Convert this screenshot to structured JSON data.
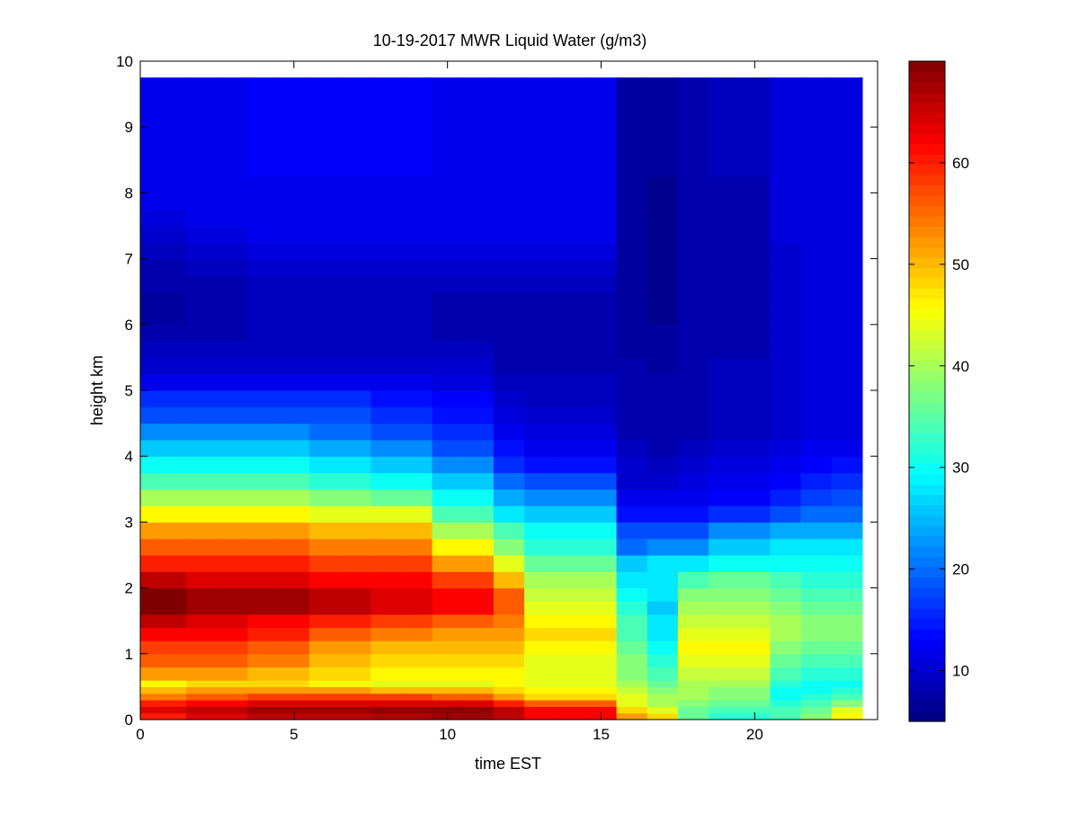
{
  "chart_data": {
    "type": "heatmap",
    "title": "10-19-2017 MWR Liquid Water (g/m3)",
    "xlabel": "time EST",
    "ylabel": "height km",
    "xlim": [
      0,
      24
    ],
    "ylim": [
      0,
      10
    ],
    "x_ticks": [
      0,
      5,
      10,
      15,
      20
    ],
    "y_ticks": [
      0,
      1,
      2,
      3,
      4,
      5,
      6,
      7,
      8,
      9,
      10
    ],
    "colorbar": {
      "range": [
        5,
        70
      ],
      "ticks": [
        10,
        20,
        30,
        40,
        50,
        60
      ],
      "colormap": "jet"
    },
    "time_hours": [
      0,
      1,
      2,
      3,
      4,
      5,
      6,
      7,
      8,
      9,
      10,
      11,
      12,
      13,
      14,
      15,
      16,
      17,
      18,
      19,
      20,
      21,
      22,
      23
    ],
    "height_km": [
      0,
      0.1,
      0.2,
      0.3,
      0.4,
      0.5,
      0.6,
      0.8,
      1.0,
      1.2,
      1.4,
      1.6,
      1.8,
      2.0,
      2.25,
      2.5,
      2.75,
      3.0,
      3.25,
      3.5,
      3.75,
      4.0,
      4.25,
      4.5,
      4.75,
      5.0,
      5.25,
      5.5,
      5.75,
      6.0,
      6.25,
      6.5,
      6.75,
      7.0,
      7.25,
      7.5,
      7.75,
      8.0,
      8.25,
      8.5,
      8.75,
      9.0,
      9.25,
      9.5,
      9.75
    ],
    "values_by_time": [
      [
        60,
        64,
        60,
        54,
        50,
        46,
        52,
        56,
        58,
        62,
        66,
        70,
        70,
        66,
        60,
        56,
        52,
        46,
        40,
        34,
        30,
        26,
        22,
        18,
        16,
        12,
        10,
        9,
        8,
        7,
        7,
        8,
        8,
        9,
        10,
        11,
        12,
        12,
        12,
        12,
        12,
        12,
        12,
        12,
        12
      ],
      [
        60,
        64,
        60,
        54,
        50,
        46,
        52,
        56,
        58,
        62,
        66,
        70,
        70,
        66,
        60,
        56,
        52,
        46,
        40,
        34,
        30,
        26,
        22,
        18,
        16,
        12,
        10,
        9,
        8,
        7,
        7,
        8,
        8,
        9,
        10,
        11,
        12,
        12,
        12,
        12,
        12,
        12,
        12,
        12,
        12
      ],
      [
        64,
        66,
        62,
        56,
        52,
        48,
        52,
        56,
        58,
        62,
        64,
        68,
        68,
        64,
        60,
        56,
        52,
        46,
        40,
        34,
        30,
        26,
        22,
        18,
        16,
        12,
        10,
        9,
        8,
        8,
        8,
        8,
        9,
        10,
        11,
        12,
        12,
        12,
        12,
        12,
        12,
        12,
        12,
        12,
        12
      ],
      [
        64,
        66,
        62,
        56,
        52,
        48,
        52,
        56,
        58,
        62,
        64,
        68,
        68,
        64,
        60,
        56,
        52,
        46,
        40,
        34,
        30,
        26,
        22,
        18,
        16,
        12,
        10,
        9,
        8,
        8,
        8,
        8,
        9,
        10,
        11,
        12,
        12,
        12,
        12,
        12,
        12,
        12,
        12,
        12,
        12
      ],
      [
        66,
        68,
        64,
        58,
        52,
        48,
        50,
        54,
        56,
        60,
        62,
        68,
        68,
        64,
        60,
        56,
        52,
        46,
        40,
        34,
        30,
        26,
        22,
        18,
        16,
        12,
        10,
        9,
        9,
        9,
        9,
        9,
        10,
        11,
        12,
        12,
        12,
        12,
        13,
        13,
        13,
        13,
        13,
        13,
        13
      ],
      [
        66,
        68,
        64,
        58,
        52,
        48,
        50,
        54,
        56,
        60,
        62,
        68,
        68,
        64,
        60,
        56,
        52,
        46,
        40,
        34,
        30,
        26,
        22,
        18,
        16,
        12,
        10,
        9,
        9,
        9,
        9,
        9,
        10,
        11,
        12,
        12,
        12,
        12,
        13,
        13,
        13,
        13,
        13,
        13,
        13
      ],
      [
        66,
        68,
        64,
        58,
        52,
        46,
        48,
        50,
        52,
        56,
        60,
        66,
        66,
        62,
        58,
        54,
        50,
        44,
        38,
        32,
        28,
        24,
        20,
        18,
        16,
        12,
        10,
        9,
        9,
        9,
        9,
        9,
        10,
        11,
        12,
        12,
        12,
        12,
        13,
        13,
        13,
        13,
        13,
        13,
        13
      ],
      [
        66,
        68,
        64,
        58,
        52,
        46,
        48,
        50,
        52,
        56,
        60,
        66,
        66,
        62,
        58,
        54,
        50,
        44,
        38,
        32,
        28,
        24,
        20,
        18,
        16,
        12,
        10,
        9,
        9,
        9,
        9,
        9,
        10,
        11,
        12,
        12,
        12,
        12,
        13,
        13,
        13,
        13,
        13,
        13,
        13
      ],
      [
        67,
        69,
        64,
        58,
        50,
        44,
        46,
        48,
        50,
        54,
        58,
        64,
        64,
        62,
        58,
        54,
        50,
        44,
        36,
        30,
        26,
        22,
        18,
        16,
        14,
        12,
        10,
        9,
        9,
        9,
        9,
        9,
        10,
        11,
        12,
        12,
        12,
        12,
        13,
        13,
        13,
        13,
        13,
        13,
        13
      ],
      [
        67,
        69,
        64,
        58,
        50,
        44,
        46,
        48,
        50,
        54,
        58,
        64,
        64,
        62,
        58,
        54,
        50,
        44,
        36,
        30,
        26,
        22,
        18,
        16,
        14,
        12,
        10,
        9,
        9,
        9,
        9,
        9,
        10,
        11,
        12,
        12,
        12,
        12,
        13,
        13,
        13,
        13,
        13,
        13,
        13
      ],
      [
        68,
        69,
        64,
        56,
        50,
        44,
        46,
        48,
        50,
        52,
        56,
        62,
        62,
        58,
        52,
        46,
        40,
        34,
        30,
        26,
        22,
        18,
        16,
        14,
        13,
        11,
        10,
        9,
        8,
        8,
        8,
        9,
        10,
        11,
        12,
        12,
        12,
        12,
        12,
        12,
        12,
        12,
        12,
        12,
        12
      ],
      [
        68,
        69,
        64,
        56,
        50,
        44,
        46,
        48,
        50,
        52,
        56,
        62,
        62,
        58,
        52,
        46,
        40,
        34,
        30,
        26,
        22,
        18,
        16,
        14,
        13,
        11,
        10,
        9,
        8,
        8,
        8,
        9,
        10,
        11,
        12,
        12,
        12,
        12,
        12,
        12,
        12,
        12,
        12,
        12,
        12
      ],
      [
        66,
        66,
        60,
        52,
        48,
        46,
        46,
        48,
        50,
        52,
        54,
        56,
        56,
        50,
        44,
        38,
        34,
        28,
        24,
        20,
        16,
        14,
        12,
        11,
        10,
        9,
        8,
        8,
        8,
        8,
        8,
        9,
        10,
        11,
        12,
        12,
        12,
        12,
        12,
        12,
        12,
        12,
        12,
        12,
        12
      ],
      [
        62,
        62,
        56,
        48,
        46,
        44,
        44,
        44,
        46,
        48,
        46,
        44,
        42,
        40,
        36,
        32,
        30,
        26,
        22,
        18,
        14,
        12,
        11,
        10,
        9,
        9,
        8,
        8,
        8,
        8,
        8,
        9,
        10,
        11,
        12,
        12,
        12,
        12,
        12,
        12,
        12,
        12,
        12,
        12,
        12
      ],
      [
        62,
        62,
        56,
        48,
        46,
        44,
        44,
        44,
        46,
        48,
        46,
        44,
        42,
        40,
        36,
        32,
        30,
        26,
        22,
        18,
        14,
        12,
        11,
        10,
        9,
        9,
        8,
        8,
        8,
        8,
        8,
        9,
        10,
        11,
        12,
        12,
        12,
        12,
        12,
        12,
        12,
        12,
        12,
        12,
        12
      ],
      [
        62,
        62,
        56,
        48,
        46,
        44,
        44,
        44,
        46,
        48,
        46,
        44,
        42,
        40,
        36,
        32,
        30,
        26,
        22,
        18,
        14,
        12,
        11,
        10,
        9,
        9,
        8,
        8,
        8,
        8,
        8,
        9,
        10,
        11,
        12,
        12,
        12,
        12,
        12,
        12,
        12,
        12,
        12,
        12,
        12
      ],
      [
        52,
        48,
        44,
        44,
        42,
        40,
        38,
        38,
        36,
        34,
        34,
        32,
        30,
        28,
        26,
        20,
        18,
        14,
        12,
        10,
        10,
        9,
        8,
        8,
        8,
        8,
        8,
        7,
        7,
        7,
        7,
        7,
        7,
        7,
        7,
        7,
        7,
        7,
        7,
        7,
        7,
        7,
        7,
        7,
        7
      ],
      [
        48,
        44,
        40,
        40,
        38,
        36,
        34,
        32,
        30,
        28,
        28,
        26,
        28,
        28,
        28,
        22,
        18,
        14,
        12,
        10,
        9,
        8,
        8,
        8,
        8,
        8,
        7,
        7,
        7,
        6,
        6,
        6,
        6,
        6,
        6,
        6,
        6,
        6,
        7,
        7,
        7,
        7,
        7,
        7,
        7
      ],
      [
        36,
        36,
        38,
        40,
        40,
        40,
        42,
        44,
        46,
        44,
        42,
        40,
        38,
        34,
        28,
        22,
        18,
        14,
        12,
        11,
        10,
        9,
        8,
        8,
        8,
        8,
        8,
        8,
        8,
        8,
        8,
        8,
        8,
        8,
        8,
        8,
        8,
        8,
        8,
        8,
        8,
        8,
        8,
        8,
        8
      ],
      [
        32,
        34,
        36,
        38,
        38,
        40,
        42,
        44,
        46,
        44,
        42,
        40,
        38,
        36,
        30,
        26,
        22,
        16,
        13,
        12,
        11,
        10,
        9,
        9,
        9,
        9,
        9,
        8,
        8,
        8,
        8,
        8,
        8,
        8,
        8,
        8,
        8,
        8,
        9,
        9,
        9,
        9,
        9,
        9,
        9
      ],
      [
        32,
        34,
        36,
        38,
        38,
        40,
        42,
        44,
        46,
        44,
        42,
        40,
        38,
        36,
        30,
        26,
        22,
        16,
        13,
        12,
        11,
        10,
        9,
        9,
        9,
        9,
        9,
        8,
        8,
        8,
        8,
        8,
        8,
        8,
        8,
        8,
        8,
        8,
        9,
        9,
        9,
        9,
        9,
        9,
        9
      ],
      [
        34,
        34,
        32,
        30,
        30,
        32,
        34,
        36,
        38,
        40,
        40,
        38,
        36,
        34,
        30,
        28,
        24,
        18,
        15,
        13,
        12,
        11,
        10,
        10,
        10,
        10,
        10,
        10,
        10,
        10,
        10,
        10,
        10,
        10,
        11,
        11,
        11,
        11,
        11,
        11,
        11,
        11,
        11,
        11,
        11
      ],
      [
        38,
        36,
        34,
        32,
        30,
        30,
        32,
        34,
        36,
        38,
        38,
        36,
        34,
        32,
        30,
        28,
        24,
        20,
        17,
        15,
        13,
        12,
        11,
        11,
        11,
        11,
        11,
        11,
        11,
        11,
        11,
        11,
        11,
        11,
        11,
        11,
        11,
        11,
        11,
        11,
        11,
        11,
        11,
        11,
        11
      ],
      [
        46,
        44,
        38,
        34,
        32,
        30,
        32,
        34,
        36,
        38,
        38,
        36,
        34,
        32,
        30,
        28,
        24,
        20,
        18,
        16,
        14,
        12,
        11,
        11,
        11,
        11,
        11,
        11,
        11,
        11,
        11,
        11,
        11,
        11,
        11,
        11,
        11,
        11,
        11,
        11,
        11,
        11,
        11,
        11,
        11
      ]
    ]
  }
}
